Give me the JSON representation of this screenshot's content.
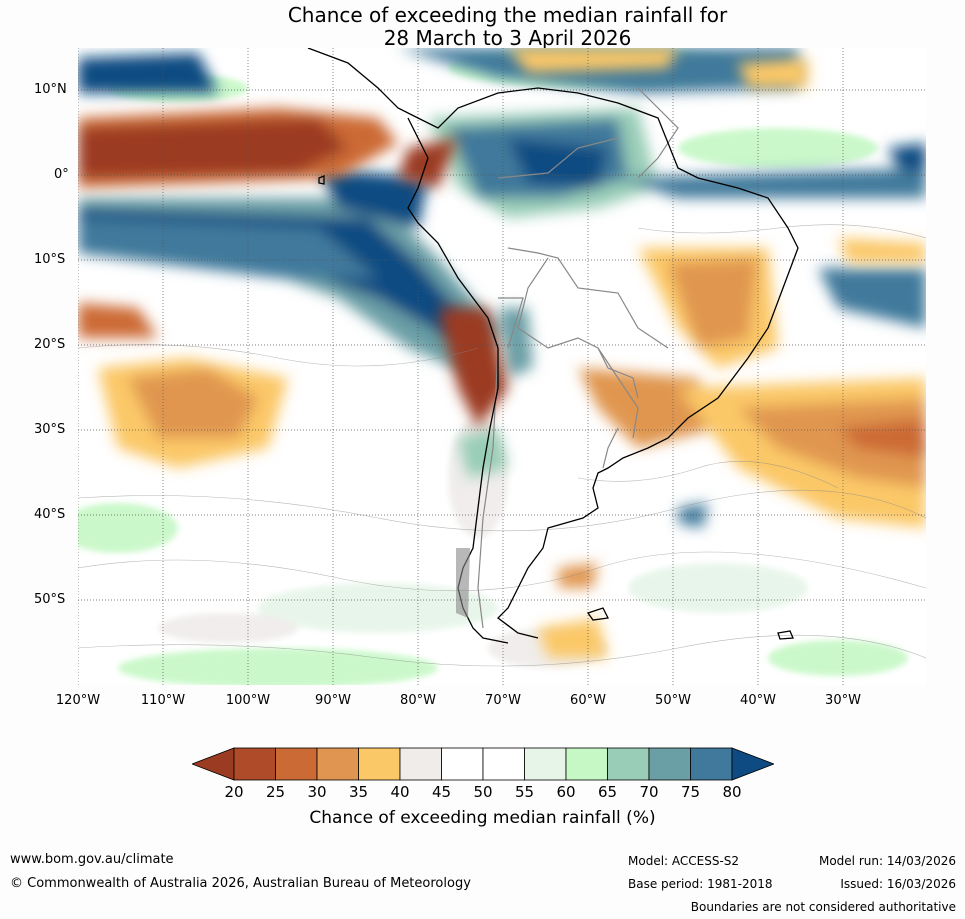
{
  "title": {
    "line1": "Chance of exceeding the median rainfall for",
    "line2": "28 March to 3 April 2026"
  },
  "map": {
    "lat_labels": [
      "10°N",
      "0°",
      "10°S",
      "20°S",
      "30°S",
      "40°S",
      "50°S"
    ],
    "lon_labels": [
      "120°W",
      "110°W",
      "100°W",
      "90°W",
      "80°W",
      "70°W",
      "60°W",
      "50°W",
      "40°W",
      "30°W"
    ]
  },
  "colorbar": {
    "ticks": [
      "20",
      "25",
      "30",
      "35",
      "40",
      "45",
      "50",
      "55",
      "60",
      "65",
      "70",
      "75",
      "80"
    ],
    "colors": [
      "#9b3b22",
      "#b04b2a",
      "#cc6a36",
      "#e09650",
      "#fbc867",
      "#efecea",
      "#ffffff",
      "#ffffff",
      "#e6f5e8",
      "#c6f8c6",
      "#99cdb7",
      "#6a9fa6",
      "#40799b",
      "#0e4b82"
    ],
    "label": "Chance of exceeding median rainfall (%)"
  },
  "footer": {
    "website": "www.bom.gov.au/climate",
    "copyright": "© Commonwealth of Australia 2026, Australian Bureau of Meteorology",
    "model": "Model: ACCESS-S2",
    "base_period": "Base period: 1981-2018",
    "model_run": "Model run: 14/03/2026",
    "issued": "Issued: 16/03/2026",
    "disclaimer": "Boundaries are not considered authoritative"
  }
}
